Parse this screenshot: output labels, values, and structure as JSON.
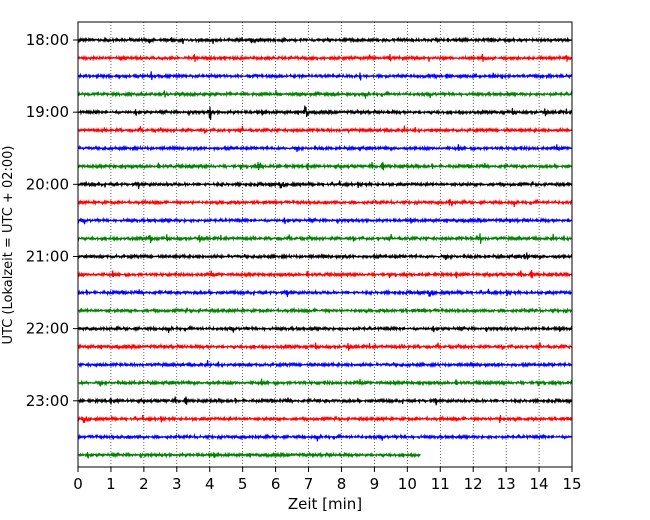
{
  "chart_data": {
    "type": "line",
    "title": "",
    "xlabel": "Zeit  [min]",
    "ylabel": "UTC (Lokalzeit = UTC + 02:00)",
    "xlim": [
      0,
      15
    ],
    "x_ticks": [
      "0",
      "1",
      "2",
      "3",
      "4",
      "5",
      "6",
      "7",
      "8",
      "9",
      "10",
      "11",
      "12",
      "13",
      "14",
      "15"
    ],
    "y_tick_labels": [
      "18:00",
      "19:00",
      "20:00",
      "21:00",
      "22:00",
      "23:00"
    ],
    "grid": "vertical dotted",
    "colors": [
      "#000000",
      "#ff0000",
      "#0000ff",
      "#008000"
    ],
    "traces": [
      {
        "start": "18:00",
        "end_min": 15,
        "color": "#000000"
      },
      {
        "start": "18:15",
        "end_min": 15,
        "color": "#ff0000"
      },
      {
        "start": "18:30",
        "end_min": 15,
        "color": "#0000ff"
      },
      {
        "start": "18:45",
        "end_min": 15,
        "color": "#008000"
      },
      {
        "start": "19:00",
        "end_min": 15,
        "color": "#000000"
      },
      {
        "start": "19:15",
        "end_min": 15,
        "color": "#ff0000"
      },
      {
        "start": "19:30",
        "end_min": 15,
        "color": "#0000ff"
      },
      {
        "start": "19:45",
        "end_min": 15,
        "color": "#008000"
      },
      {
        "start": "20:00",
        "end_min": 15,
        "color": "#000000"
      },
      {
        "start": "20:15",
        "end_min": 15,
        "color": "#ff0000"
      },
      {
        "start": "20:30",
        "end_min": 15,
        "color": "#0000ff"
      },
      {
        "start": "20:45",
        "end_min": 15,
        "color": "#008000"
      },
      {
        "start": "21:00",
        "end_min": 15,
        "color": "#000000"
      },
      {
        "start": "21:15",
        "end_min": 15,
        "color": "#ff0000"
      },
      {
        "start": "21:30",
        "end_min": 15,
        "color": "#0000ff"
      },
      {
        "start": "21:45",
        "end_min": 15,
        "color": "#008000"
      },
      {
        "start": "22:00",
        "end_min": 15,
        "color": "#000000"
      },
      {
        "start": "22:15",
        "end_min": 15,
        "color": "#ff0000"
      },
      {
        "start": "22:30",
        "end_min": 15,
        "color": "#0000ff"
      },
      {
        "start": "22:45",
        "end_min": 15,
        "color": "#008000"
      },
      {
        "start": "23:00",
        "end_min": 15,
        "color": "#000000"
      },
      {
        "start": "23:15",
        "end_min": 15,
        "color": "#ff0000"
      },
      {
        "start": "23:30",
        "end_min": 15,
        "color": "#0000ff"
      },
      {
        "start": "23:45",
        "end_min": 10.4,
        "color": "#008000"
      }
    ],
    "events": [
      {
        "trace": 4,
        "x_min": 4.0,
        "amplitude": "large"
      },
      {
        "trace": 4,
        "x_min": 6.9,
        "amplitude": "large"
      },
      {
        "trace": 11,
        "x_min": 12.2,
        "amplitude": "medium"
      },
      {
        "trace": 11,
        "x_min": 2.2,
        "amplitude": "medium"
      },
      {
        "trace": 12,
        "x_min": 13.6,
        "amplitude": "medium"
      },
      {
        "trace": 21,
        "x_min": 12.8,
        "amplitude": "medium"
      },
      {
        "trace": 7,
        "x_min": 5.5,
        "amplitude": "medium"
      },
      {
        "trace": 9,
        "x_min": 11.3,
        "amplitude": "medium"
      }
    ]
  }
}
